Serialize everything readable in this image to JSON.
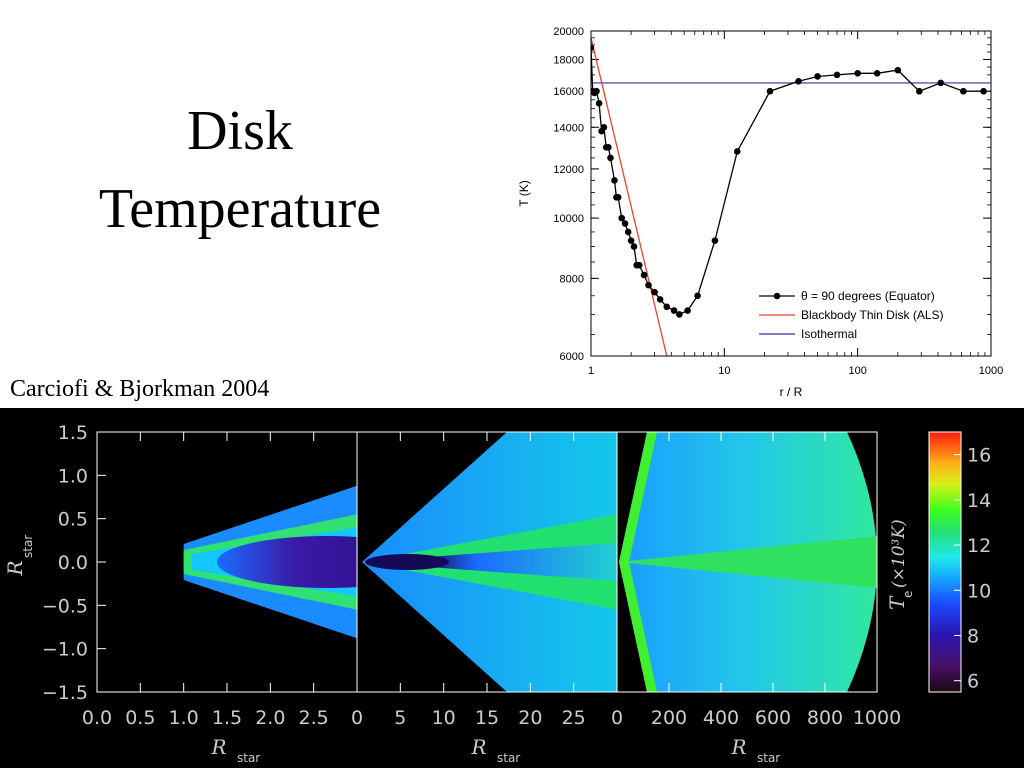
{
  "slide": {
    "title_line1": "Disk",
    "title_line2": "Temperature",
    "citation": "Carciofi & Bjorkman 2004"
  },
  "chart_data": [
    {
      "type": "line",
      "xlabel": "r / R",
      "ylabel": "T (K)",
      "xscale": "log",
      "yscale": "log",
      "xlim": [
        1,
        1000
      ],
      "ylim": [
        6000,
        20000
      ],
      "xticks": [
        "1",
        "10",
        "100",
        "1000"
      ],
      "yticks": [
        "6000",
        "8000",
        "10000",
        "12000",
        "14000",
        "16000",
        "18000",
        "20000"
      ],
      "legend_position": "bottom-right",
      "grid": false,
      "series": [
        {
          "name": "θ = 90 degrees (Equator)",
          "color": "#000000",
          "marker": "circle",
          "x": [
            1.0,
            1.03,
            1.06,
            1.1,
            1.15,
            1.2,
            1.25,
            1.3,
            1.35,
            1.4,
            1.5,
            1.55,
            1.6,
            1.7,
            1.8,
            1.9,
            2.0,
            2.1,
            2.2,
            2.3,
            2.5,
            2.7,
            3.0,
            3.3,
            3.7,
            4.2,
            4.6,
            5.3,
            6.3,
            8.5,
            12.5,
            22,
            36,
            50,
            70,
            100,
            140,
            200,
            290,
            420,
            620,
            880
          ],
          "y": [
            18800,
            16000,
            15900,
            16000,
            15300,
            13800,
            14000,
            13000,
            13000,
            12500,
            11500,
            10800,
            10800,
            10000,
            9800,
            9500,
            9200,
            9000,
            8400,
            8400,
            8100,
            7800,
            7600,
            7400,
            7200,
            7100,
            7000,
            7100,
            7500,
            9200,
            12800,
            16000,
            16600,
            16900,
            17000,
            17100,
            17100,
            17300,
            16000,
            16500,
            16000,
            16000
          ]
        },
        {
          "name": "Blackbody Thin Disk (ALS)",
          "color": "#e8452c",
          "x": [
            1.0,
            3.7
          ],
          "y": [
            19500,
            6000
          ]
        },
        {
          "name": "Isothermal",
          "color": "#333399",
          "x": [
            1,
            1000
          ],
          "y": [
            16500,
            16500
          ]
        }
      ]
    },
    {
      "type": "heatmap",
      "panels": [
        {
          "xticks": [
            "0.0",
            "0.5",
            "1.0",
            "1.5",
            "2.0",
            "2.5"
          ],
          "xlim": [
            0,
            3
          ],
          "xlabel_main": "R",
          "xlabel_sub": "star"
        },
        {
          "xticks": [
            "0",
            "5",
            "10",
            "15",
            "20",
            "25"
          ],
          "xlim": [
            0,
            30
          ],
          "xlabel_main": "R",
          "xlabel_sub": "star"
        },
        {
          "xticks": [
            "0",
            "200",
            "400",
            "600",
            "800",
            "1000"
          ],
          "xlim": [
            0,
            1000
          ],
          "xlabel_main": "R",
          "xlabel_sub": "star"
        }
      ],
      "yticks": [
        "1.5",
        "1.0",
        "0.5",
        "0.0",
        "−0.5",
        "−1.0",
        "−1.5"
      ],
      "ylim": [
        -1.5,
        1.5
      ],
      "ylabel_main": "R",
      "ylabel_sub": "star",
      "colorbar": {
        "label": "T_e (×10^3 K)",
        "label_main": "T",
        "label_sub": "e",
        "label_rest": "(×10³K)",
        "ticks": [
          "6",
          "8",
          "10",
          "12",
          "14",
          "16"
        ],
        "range": [
          5.5,
          17
        ]
      }
    }
  ]
}
